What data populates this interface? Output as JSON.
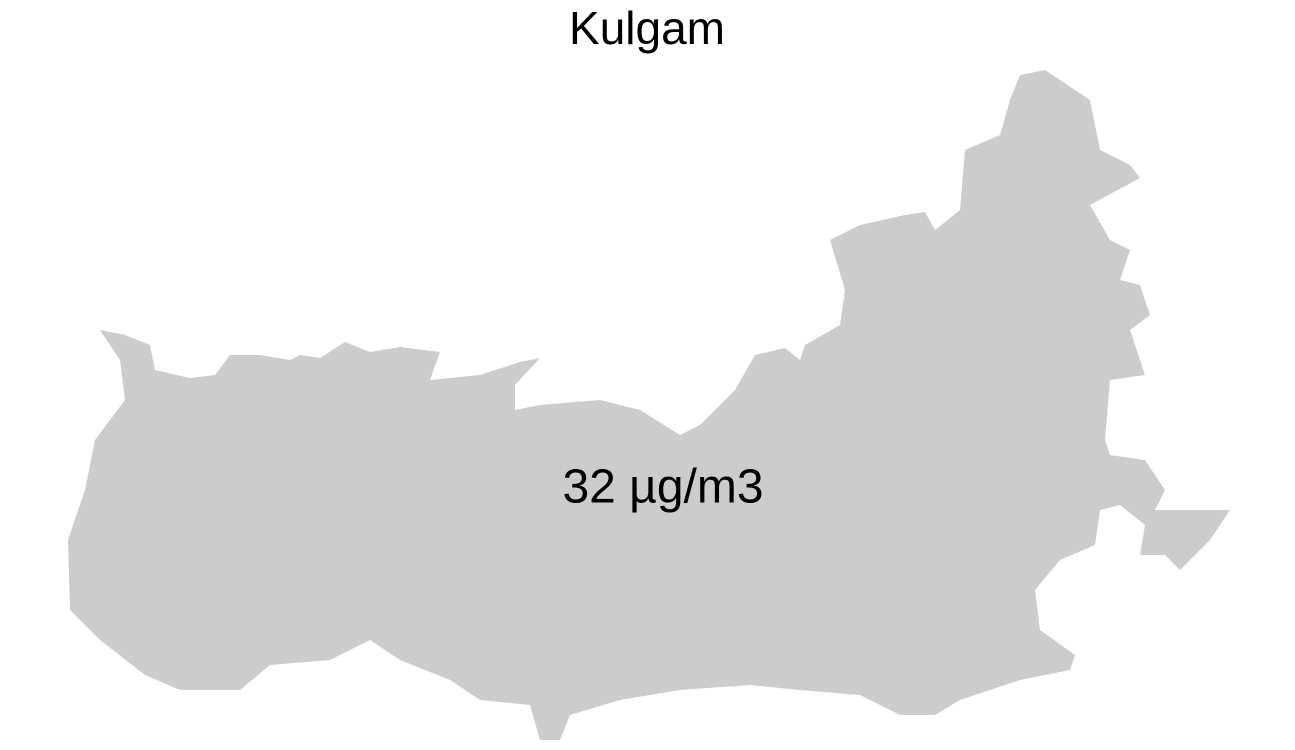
{
  "map": {
    "title": "Kulgam",
    "region_label": "32 µg/m3"
  }
}
